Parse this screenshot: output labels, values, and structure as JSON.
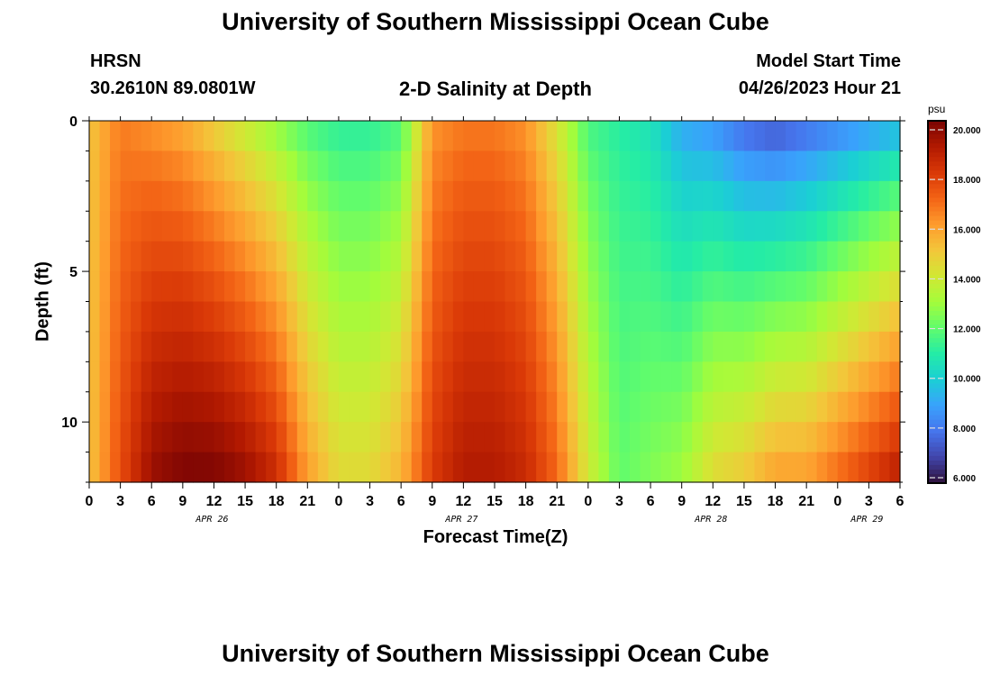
{
  "header": {
    "title": "University of Southern Mississippi Ocean Cube",
    "station": "HRSN",
    "coords": "30.2610N  89.0801W",
    "subtitle": "2-D Salinity at Depth",
    "model_label": "Model Start Time",
    "model_time": "04/26/2023 Hour 21"
  },
  "footer": {
    "title": "University of Southern Mississippi Ocean Cube"
  },
  "chart_data": {
    "type": "heatmap",
    "title": "2-D Salinity at Depth",
    "xlabel": "Forecast Time(Z)",
    "ylabel": "Depth (ft)",
    "units": "psu",
    "x_ticks": [
      "0",
      "3",
      "6",
      "9",
      "12",
      "15",
      "18",
      "21",
      "0",
      "3",
      "6",
      "9",
      "12",
      "15",
      "18",
      "21",
      "0",
      "3",
      "6",
      "9",
      "12",
      "15",
      "18",
      "21",
      "0",
      "3",
      "6"
    ],
    "day_labels": [
      {
        "label": "APR 26",
        "hour": 12
      },
      {
        "label": "APR 27",
        "hour": 36
      },
      {
        "label": "APR 28",
        "hour": 60
      },
      {
        "label": "APR 29",
        "hour": 75
      }
    ],
    "y_ticks": [
      0,
      5,
      10
    ],
    "ylim": [
      0,
      12
    ],
    "xlim_hours": [
      0,
      78
    ],
    "colorbar": {
      "min": 6.0,
      "max": 20.0,
      "ticks": [
        "20.000",
        "18.000",
        "16.000",
        "14.000",
        "12.000",
        "10.000",
        "8.000",
        "6.000"
      ],
      "colors": [
        "#30123b",
        "#4145ab",
        "#4675ed",
        "#39a2fc",
        "#1bcfd4",
        "#24eca6",
        "#61fc6c",
        "#a4fc3b",
        "#d1e834",
        "#f3c63a",
        "#fe9b2d",
        "#f36315",
        "#d93807",
        "#b11901",
        "#7a0403"
      ]
    },
    "anchor_series": [
      {
        "hour": 0,
        "top": 15.0,
        "bottom": 15.0
      },
      {
        "hour": 3,
        "top": 16.5,
        "bottom": 17.5
      },
      {
        "hour": 6,
        "top": 16.0,
        "bottom": 19.5
      },
      {
        "hour": 9,
        "top": 15.5,
        "bottom": 20.0
      },
      {
        "hour": 12,
        "top": 14.5,
        "bottom": 20.0
      },
      {
        "hour": 15,
        "top": 13.5,
        "bottom": 19.5
      },
      {
        "hour": 18,
        "top": 12.5,
        "bottom": 18.5
      },
      {
        "hour": 21,
        "top": 11.5,
        "bottom": 16.0
      },
      {
        "hour": 24,
        "top": 11.0,
        "bottom": 14.5
      },
      {
        "hour": 27,
        "top": 11.0,
        "bottom": 14.5
      },
      {
        "hour": 30,
        "top": 11.5,
        "bottom": 15.5
      },
      {
        "hour": 33,
        "top": 16.0,
        "bottom": 18.0
      },
      {
        "hour": 36,
        "top": 16.5,
        "bottom": 19.0
      },
      {
        "hour": 39,
        "top": 16.5,
        "bottom": 19.0
      },
      {
        "hour": 42,
        "top": 16.0,
        "bottom": 18.5
      },
      {
        "hour": 45,
        "top": 14.0,
        "bottom": 17.0
      },
      {
        "hour": 48,
        "top": 11.5,
        "bottom": 14.0
      },
      {
        "hour": 51,
        "top": 11.0,
        "bottom": 12.0
      },
      {
        "hour": 54,
        "top": 10.5,
        "bottom": 12.5
      },
      {
        "hour": 57,
        "top": 9.0,
        "bottom": 13.0
      },
      {
        "hour": 60,
        "top": 8.5,
        "bottom": 14.5
      },
      {
        "hour": 63,
        "top": 7.5,
        "bottom": 15.0
      },
      {
        "hour": 66,
        "top": 7.0,
        "bottom": 16.0
      },
      {
        "hour": 69,
        "top": 7.5,
        "bottom": 16.0
      },
      {
        "hour": 72,
        "top": 8.0,
        "bottom": 17.0
      },
      {
        "hour": 75,
        "top": 8.5,
        "bottom": 18.0
      },
      {
        "hour": 78,
        "top": 9.0,
        "bottom": 19.0
      }
    ]
  }
}
